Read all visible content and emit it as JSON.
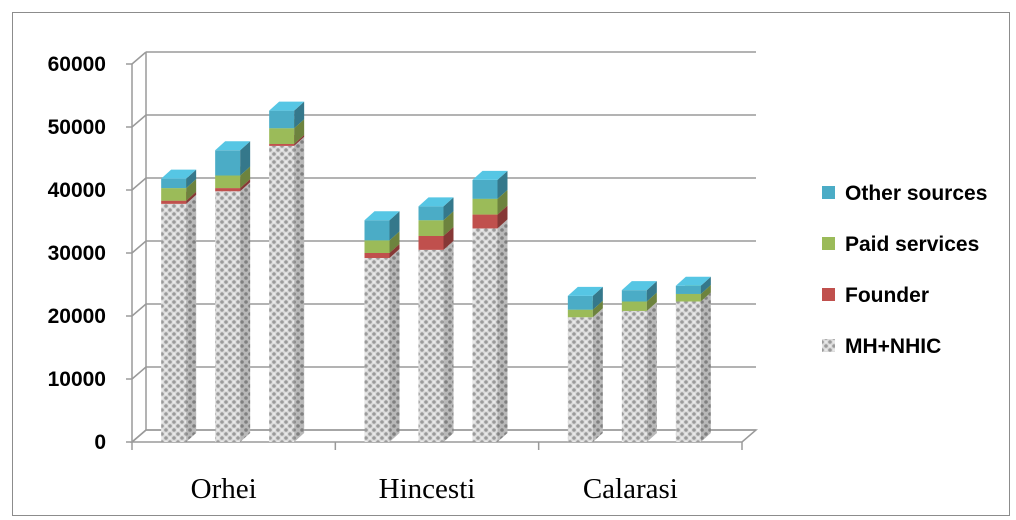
{
  "chart_data": {
    "type": "bar",
    "stacked": true,
    "three_d": true,
    "title": "",
    "xlabel": "",
    "ylabel": "",
    "ylim": [
      0,
      60000
    ],
    "yticks": [
      "0",
      "10000",
      "20000",
      "30000",
      "40000",
      "50000",
      "60000"
    ],
    "grid": true,
    "legend_position": "right",
    "categories": [
      "Orhei",
      "Hincesti",
      "Calarasi"
    ],
    "bars_per_category": 3,
    "series": [
      {
        "name": "MH+NHIC",
        "color": "#c9c9c9",
        "values": [
          [
            37800,
            39800,
            47000
          ],
          [
            29200,
            30500,
            33900
          ],
          [
            19800,
            20800,
            22300
          ]
        ]
      },
      {
        "name": "Founder",
        "color": "#c0504d",
        "values": [
          [
            500,
            500,
            300
          ],
          [
            800,
            2200,
            2200
          ],
          [
            0,
            0,
            0
          ]
        ]
      },
      {
        "name": "Paid services",
        "color": "#9bbb59",
        "values": [
          [
            2000,
            2000,
            2500
          ],
          [
            2000,
            2500,
            2500
          ],
          [
            1200,
            1500,
            1200
          ]
        ]
      },
      {
        "name": "Other sources",
        "color": "#4bacc6",
        "values": [
          [
            1500,
            4000,
            2800
          ],
          [
            3200,
            2200,
            3000
          ],
          [
            2200,
            1800,
            1300
          ]
        ]
      }
    ],
    "legend_order": [
      "Other sources",
      "Paid services",
      "Founder",
      "MH+NHIC"
    ]
  }
}
